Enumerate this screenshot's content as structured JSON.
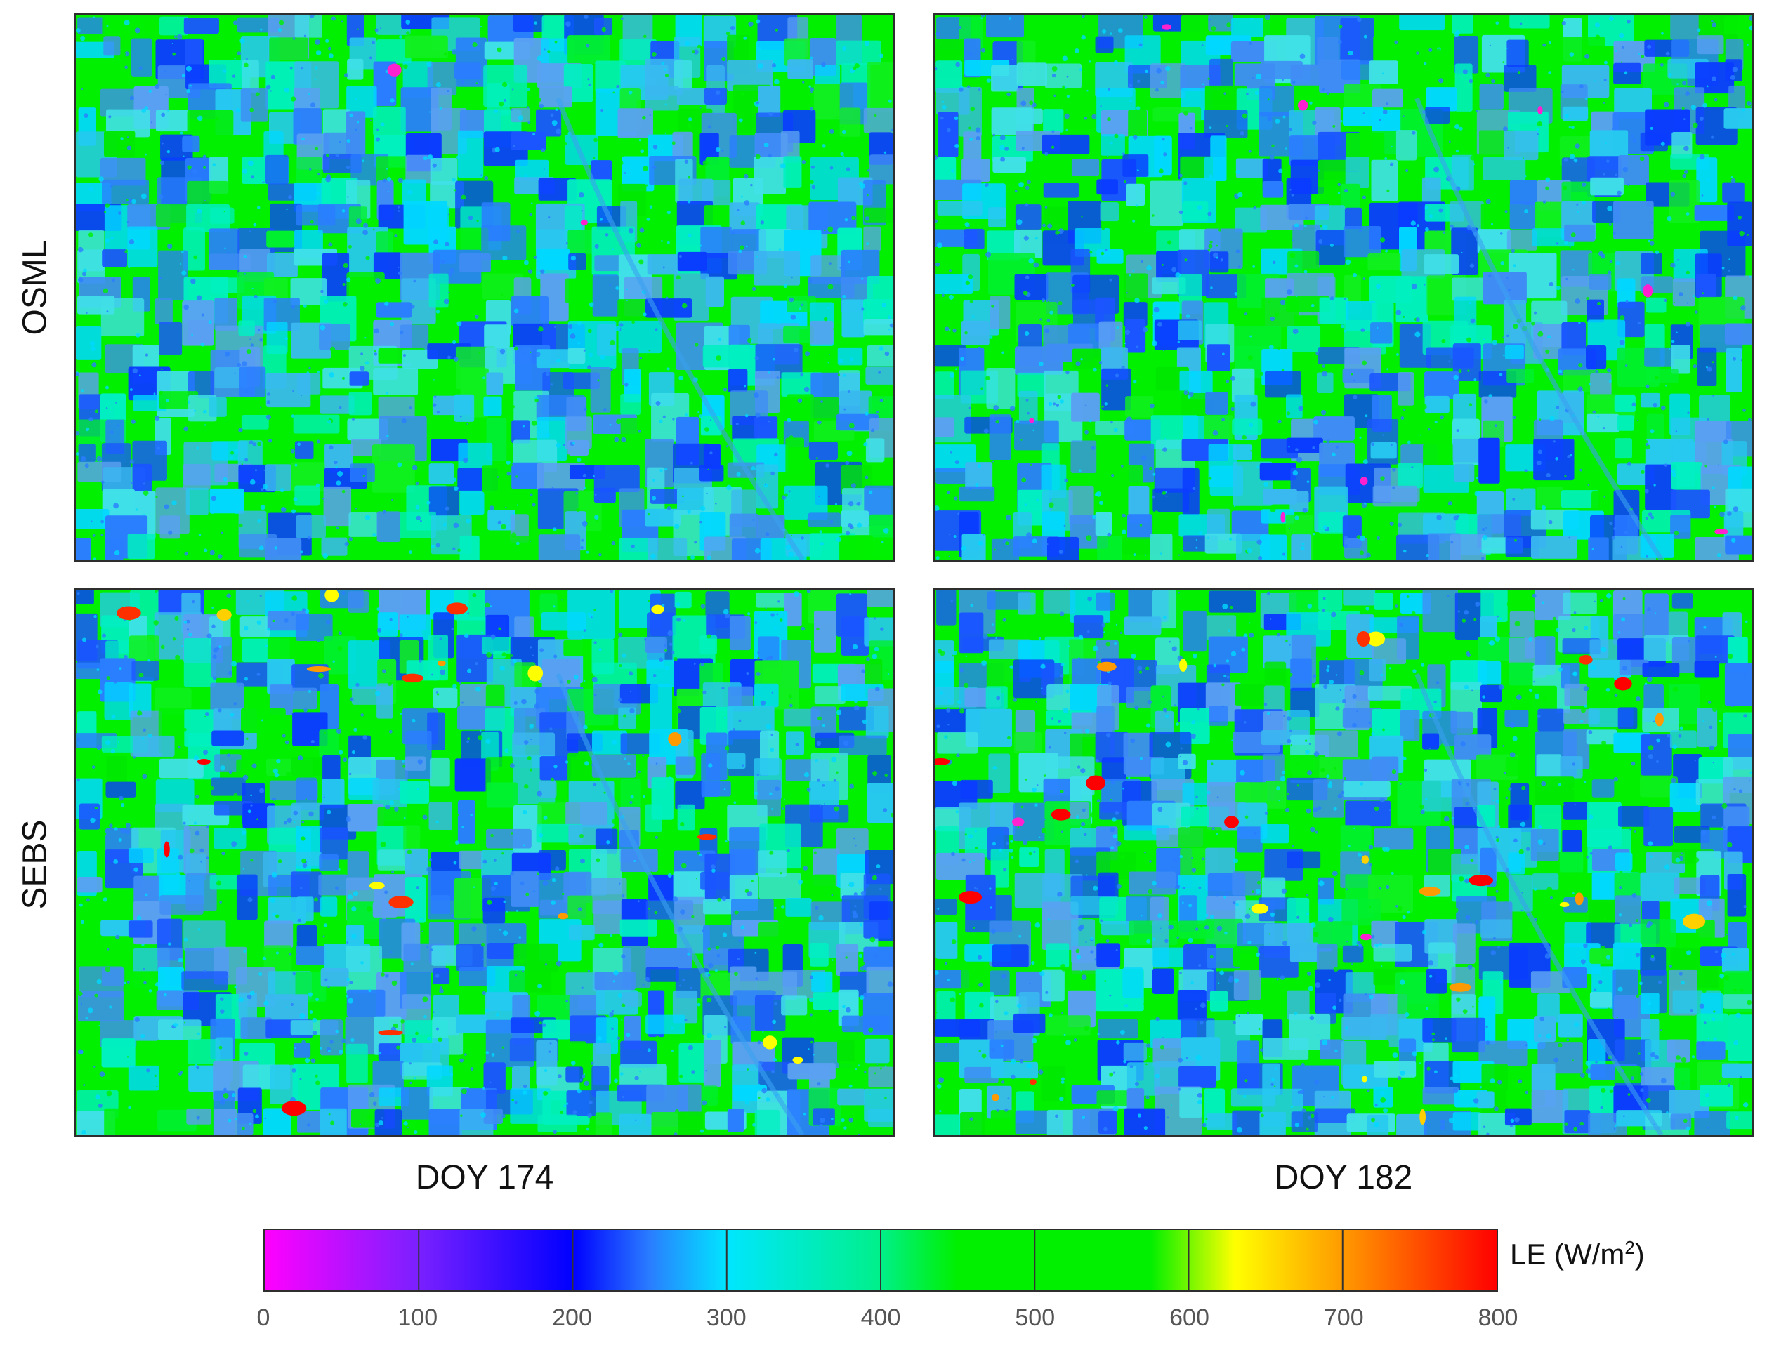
{
  "row_labels": [
    "OSML",
    "SEBS"
  ],
  "column_labels": [
    "DOY 174",
    "DOY 182"
  ],
  "colorbar": {
    "unit_prefix": "LE (W/m",
    "unit_exponent": "2",
    "unit_suffix": ")",
    "min": 0,
    "max": 800,
    "ticks": [
      "0",
      "100",
      "200",
      "300",
      "400",
      "500",
      "600",
      "700",
      "800"
    ],
    "stops": [
      {
        "value": 0,
        "color": "#ff00ff"
      },
      {
        "value": 100,
        "color": "#7a20ff"
      },
      {
        "value": 200,
        "color": "#0000ff"
      },
      {
        "value": 250,
        "color": "#2a7dff"
      },
      {
        "value": 300,
        "color": "#00e6ff"
      },
      {
        "value": 400,
        "color": "#00f08a"
      },
      {
        "value": 450,
        "color": "#00f000"
      },
      {
        "value": 575,
        "color": "#00f000"
      },
      {
        "value": 630,
        "color": "#ffff00"
      },
      {
        "value": 700,
        "color": "#ff9a00"
      },
      {
        "value": 800,
        "color": "#ff0000"
      }
    ]
  },
  "panels": [
    {
      "id": "osml-174",
      "model": "OSML",
      "doy": "DOY 174",
      "seed": 11,
      "blueFrac": 0.34,
      "cyanFrac": 0.3,
      "hotFrac": 0.0,
      "magFrac": 0.004
    },
    {
      "id": "osml-182",
      "model": "OSML",
      "doy": "DOY 182",
      "seed": 23,
      "blueFrac": 0.32,
      "cyanFrac": 0.34,
      "hotFrac": 0.0,
      "magFrac": 0.02
    },
    {
      "id": "sebs-174",
      "model": "SEBS",
      "doy": "DOY 174",
      "seed": 37,
      "blueFrac": 0.4,
      "cyanFrac": 0.3,
      "hotFrac": 0.05,
      "magFrac": 0.0
    },
    {
      "id": "sebs-182",
      "model": "SEBS",
      "doy": "DOY 182",
      "seed": 53,
      "blueFrac": 0.36,
      "cyanFrac": 0.3,
      "hotFrac": 0.06,
      "magFrac": 0.004
    }
  ]
}
